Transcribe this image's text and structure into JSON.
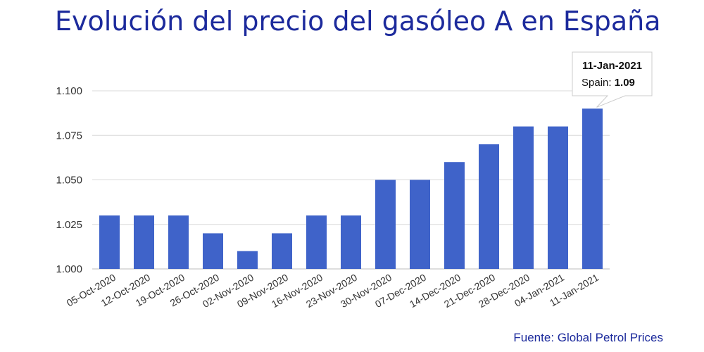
{
  "title": "Evolución del precio del gasóleo A en España",
  "source": "Fuente: Global Petrol Prices",
  "colors": {
    "bar": "#3f63c9",
    "title": "#1c2a9c",
    "grid": "#d9d9d9"
  },
  "chart_data": {
    "type": "bar",
    "title": "Evolución del precio del gasóleo A en España",
    "xlabel": "",
    "ylabel": "",
    "categories": [
      "05-Oct-2020",
      "12-Oct-2020",
      "19-Oct-2020",
      "26-Oct-2020",
      "02-Nov-2020",
      "09-Nov-2020",
      "16-Nov-2020",
      "23-Nov-2020",
      "30-Nov-2020",
      "07-Dec-2020",
      "14-Dec-2020",
      "21-Dec-2020",
      "28-Dec-2020",
      "04-Jan-2021",
      "11-Jan-2021"
    ],
    "series": [
      {
        "name": "Spain",
        "values": [
          1.03,
          1.03,
          1.03,
          1.02,
          1.01,
          1.02,
          1.03,
          1.03,
          1.05,
          1.05,
          1.06,
          1.07,
          1.08,
          1.08,
          1.09
        ]
      }
    ],
    "yticks": [
      "1.000",
      "1.025",
      "1.050",
      "1.075",
      "1.100"
    ],
    "ylim": [
      1.0,
      1.1
    ],
    "grid": true,
    "legend": "none",
    "tooltip": {
      "date": "11-Jan-2021",
      "series_label": "Spain: ",
      "value": "1.09"
    }
  }
}
